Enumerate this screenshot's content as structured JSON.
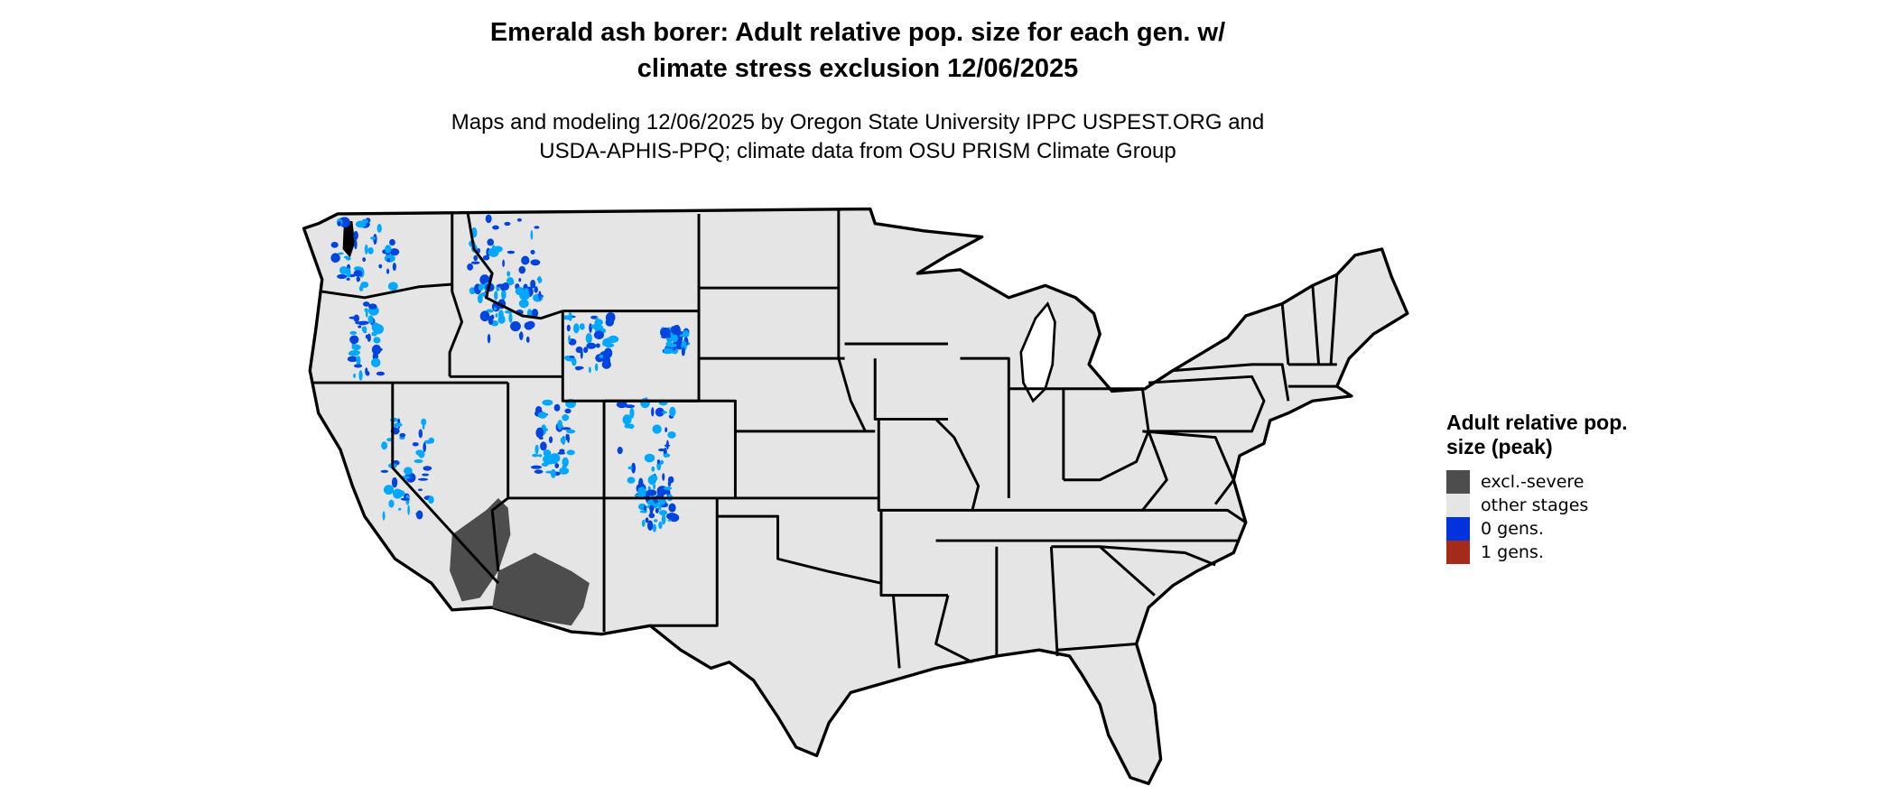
{
  "title_line1": "Emerald ash borer: Adult relative pop. size for each gen. w/",
  "title_line2": "climate stress exclusion 12/06/2025",
  "subtitle_line1": "Maps and modeling 12/06/2025 by Oregon State University IPPC USPEST.ORG and",
  "subtitle_line2": "USDA-APHIS-PPQ; climate data from OSU PRISM Climate Group",
  "legend": {
    "title": "Adult relative pop. size (peak)",
    "items": [
      {
        "label": "excl.-severe",
        "color": "#4d4d4d"
      },
      {
        "label": "other stages",
        "color": "#e5e5e5"
      },
      {
        "label": "0 gens.",
        "color": "#0033dd"
      },
      {
        "label": "1 gens.",
        "color": "#a52a1a"
      }
    ]
  },
  "colors": {
    "zero_gens_light": "#00a8ff",
    "zero_gens_dark": "#0044e0",
    "land": "#e5e5e5",
    "border": "#000000"
  }
}
